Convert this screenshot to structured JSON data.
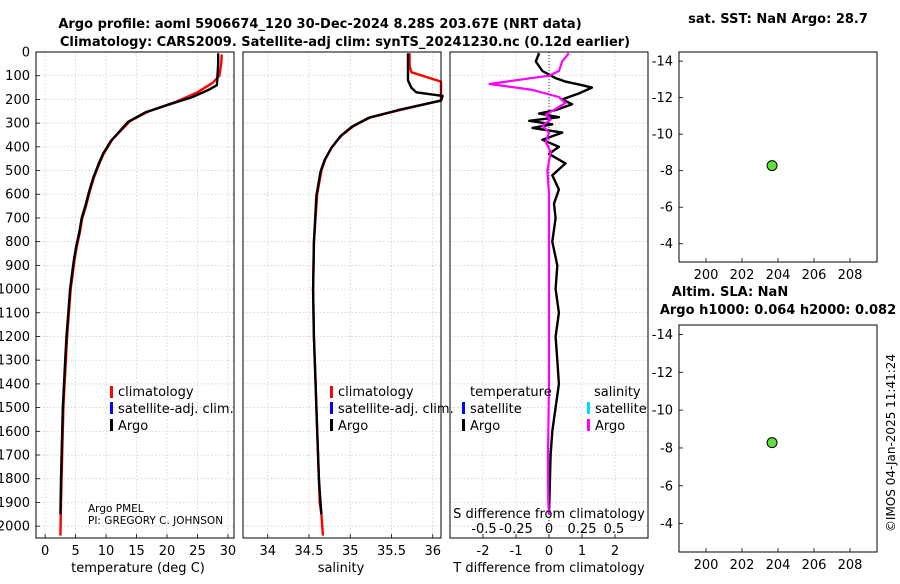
{
  "chart_data": [
    {
      "id": "temperature",
      "type": "line",
      "title_line1": "Argo profile: aoml 5906674_120 30-Dec-2024 8.28S 203.67E (NRT data)",
      "title_line2": "Climatology: CARS2009. Satellite-adj clim: synTS_20241230.nc (0.12d earlier)",
      "xlabel": "temperature (deg C)",
      "ylabel": "",
      "xlim": [
        -1.5,
        31
      ],
      "ylim": [
        2050,
        0
      ],
      "xticks": [
        0,
        5,
        10,
        15,
        20,
        25,
        30
      ],
      "yticks": [
        0,
        100,
        200,
        300,
        400,
        500,
        600,
        700,
        800,
        900,
        1000,
        1100,
        1200,
        1300,
        1400,
        1500,
        1600,
        1700,
        1800,
        1900,
        2000
      ],
      "grid": true,
      "legend": [
        "climatology",
        "satellite-adj. clim.",
        "Argo"
      ],
      "annotation_lines": [
        "Argo PMEL",
        "PI: GREGORY C. JOHNSON"
      ],
      "series": [
        {
          "name": "climatology",
          "color": "#ff0000",
          "x": [
            29.0,
            28.9,
            28.6,
            27.5,
            25.0,
            21.5,
            17.0,
            14.0,
            12.5,
            11.0,
            9.6,
            8.9,
            8.0,
            7.3,
            6.7,
            6.1,
            5.7,
            5.2,
            4.8,
            4.5,
            4.2,
            3.9,
            3.6,
            3.4,
            3.2,
            3.0,
            2.9,
            2.8,
            2.7,
            2.6,
            2.5
          ],
          "y": [
            10,
            50,
            100,
            130,
            170,
            210,
            250,
            290,
            330,
            370,
            430,
            470,
            530,
            590,
            650,
            700,
            760,
            820,
            880,
            940,
            1000,
            1100,
            1200,
            1300,
            1400,
            1500,
            1600,
            1700,
            1800,
            1900,
            2040
          ]
        },
        {
          "name": "Argo",
          "color": "#000000",
          "x": [
            28.4,
            28.4,
            28.2,
            26.8,
            24.2,
            20.5,
            16.4,
            13.6,
            12.2,
            10.8,
            9.5,
            8.8,
            7.9,
            7.2,
            6.6,
            6.0,
            5.6,
            5.1,
            4.7,
            4.4,
            4.1,
            3.8,
            3.5,
            3.3,
            3.1,
            2.9,
            2.8,
            2.7,
            2.6,
            2.5
          ],
          "y": [
            5,
            50,
            140,
            160,
            190,
            220,
            255,
            295,
            335,
            375,
            430,
            470,
            530,
            590,
            650,
            700,
            760,
            820,
            880,
            940,
            1000,
            1100,
            1200,
            1300,
            1400,
            1500,
            1600,
            1700,
            1800,
            1950
          ]
        }
      ]
    },
    {
      "id": "salinity",
      "type": "line",
      "xlabel": "salinity",
      "xlim": [
        33.7,
        36.1
      ],
      "ylim": [
        2050,
        0
      ],
      "xticks": [
        34,
        34.5,
        35,
        35.5,
        36
      ],
      "grid": true,
      "legend": [
        "climatology",
        "satellite-adj. clim.",
        "Argo"
      ],
      "series": [
        {
          "name": "climatology",
          "color": "#ff0000",
          "x": [
            35.72,
            35.72,
            35.74,
            36.1,
            36.1,
            35.6,
            35.25,
            35.05,
            34.9,
            34.78,
            34.7,
            34.65,
            34.6,
            34.56,
            34.55,
            34.56,
            34.58,
            34.6,
            34.62,
            34.63,
            34.65,
            34.66,
            34.67
          ],
          "y": [
            5,
            60,
            85,
            125,
            205,
            245,
            275,
            310,
            350,
            400,
            450,
            500,
            600,
            800,
            1000,
            1200,
            1400,
            1600,
            1800,
            1900,
            1950,
            2000,
            2040
          ]
        },
        {
          "name": "Argo",
          "color": "#000000",
          "x": [
            35.7,
            35.7,
            35.74,
            35.8,
            36.12,
            36.1,
            35.58,
            35.22,
            35.02,
            34.88,
            34.77,
            34.69,
            34.64,
            34.59,
            34.56,
            34.55,
            34.56,
            34.58,
            34.6,
            34.62,
            34.64,
            34.65
          ],
          "y": [
            5,
            120,
            150,
            170,
            185,
            205,
            245,
            278,
            315,
            355,
            405,
            455,
            505,
            605,
            805,
            1005,
            1200,
            1400,
            1600,
            1800,
            1900,
            1950
          ]
        }
      ]
    },
    {
      "id": "difference",
      "type": "line",
      "xlabel": "T difference from climatology",
      "xlabel_top": "S difference from climatology",
      "xlim": [
        -3,
        3
      ],
      "ylim": [
        2050,
        0
      ],
      "xticks": [
        -2,
        -1,
        0,
        1,
        2
      ],
      "top_ticks": [
        "-0.5",
        "-0.25",
        "0",
        "0.25",
        "0.5"
      ],
      "grid": true,
      "legend_titles": [
        "temperature",
        "salinity"
      ],
      "legend_left": [
        "satellite",
        "Argo"
      ],
      "legend_right": [
        "satellite",
        "Argo"
      ],
      "series": [
        {
          "name": "temperature Argo",
          "color": "#000000",
          "x": [
            -0.3,
            -0.4,
            -0.2,
            0.2,
            0.5,
            1.0,
            1.3,
            0.9,
            0.4,
            0.7,
            0.2,
            -0.3,
            0.3,
            -0.6,
            0.1,
            -0.5,
            0.4,
            -0.2,
            0.3,
            0.0,
            0.5,
            0.1,
            0.3,
            0.15,
            0.2,
            0.1,
            0.25,
            0.2,
            0.3,
            0.2,
            0.25,
            0.3,
            0.2,
            0.1,
            0.05,
            0.0
          ],
          "y": [
            5,
            40,
            80,
            110,
            125,
            140,
            150,
            175,
            200,
            220,
            245,
            260,
            275,
            290,
            305,
            320,
            340,
            370,
            400,
            430,
            470,
            520,
            580,
            640,
            700,
            800,
            900,
            1000,
            1100,
            1200,
            1300,
            1400,
            1500,
            1600,
            1700,
            1950
          ]
        },
        {
          "name": "salinity Argo",
          "color": "#ff00ff",
          "x": [
            0.6,
            0.4,
            0.3,
            0.0,
            -0.8,
            -1.8,
            -0.5,
            0.3,
            0.5,
            0.2,
            -0.1,
            0.05,
            -0.2,
            0.0,
            -0.1,
            0.05,
            -0.05,
            0.0,
            0.0,
            0.0,
            0.0,
            0.0,
            -0.02,
            -0.03,
            -0.03,
            -0.02,
            0.0
          ],
          "y": [
            5,
            40,
            80,
            100,
            115,
            135,
            160,
            190,
            215,
            240,
            265,
            285,
            310,
            340,
            380,
            420,
            500,
            600,
            800,
            1000,
            1200,
            1400,
            1600,
            1700,
            1800,
            1900,
            1950
          ]
        }
      ]
    },
    {
      "id": "sst-map",
      "type": "scatter",
      "title": "sat. SST: NaN Argo: 28.7",
      "xlim": [
        198.5,
        209.5
      ],
      "ylim": [
        -3,
        -14.5
      ],
      "xticks": [
        200,
        202,
        204,
        206,
        208
      ],
      "yticks": [
        -4,
        -6,
        -8,
        -10,
        -12,
        -14
      ],
      "grid": false,
      "points": [
        {
          "x": 203.67,
          "y": -8.28
        }
      ],
      "point_color": "#5ee03a"
    },
    {
      "id": "sla-map",
      "type": "scatter",
      "title_line1": "Altim. SLA: NaN",
      "title_line2": "Argo h1000: 0.064 h2000: 0.082",
      "xlim": [
        198.5,
        209.5
      ],
      "ylim": [
        -2.5,
        -14.5
      ],
      "xticks": [
        200,
        202,
        204,
        206,
        208
      ],
      "yticks": [
        -4,
        -6,
        -8,
        -10,
        -12,
        -14
      ],
      "grid": false,
      "points": [
        {
          "x": 203.67,
          "y": -8.28
        }
      ],
      "point_color": "#5ee03a"
    }
  ],
  "side_stamp": "©IMOS 04-Jan-2025 11:41:24",
  "colors": {
    "climatology": "#ff0000",
    "satellite": "#0000ff",
    "argo": "#000000",
    "sat_salinity": "#00d8ff",
    "argo_salinity": "#ff00ff"
  }
}
